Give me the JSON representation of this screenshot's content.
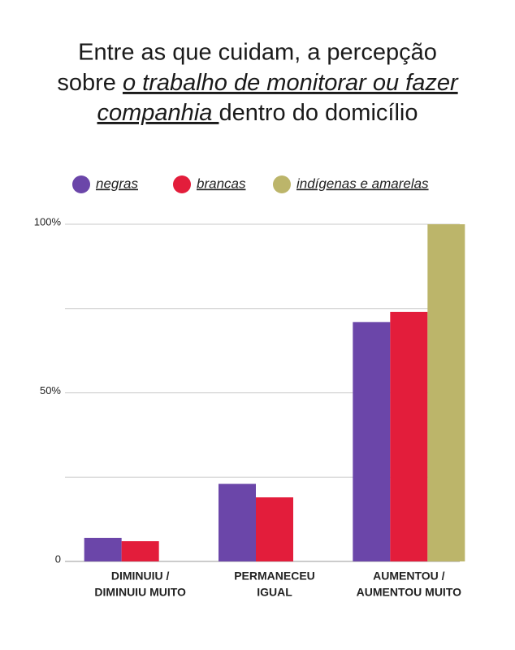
{
  "chart_data": {
    "type": "bar",
    "title": [
      "Entre as que cuidam, a percepção",
      "sobre ",
      "o trabalho de monitorar ou fazer",
      "companhia ",
      "dentro do domicílio"
    ],
    "categories": [
      [
        "DIMINUIU /",
        "DIMINUIU MUITO"
      ],
      [
        "PERMANECEU",
        "IGUAL"
      ],
      [
        "AUMENTOU /",
        "AUMENTOU MUITO"
      ]
    ],
    "series": [
      {
        "name": "negras",
        "color": "#6b46a9",
        "values": [
          7,
          23,
          71
        ]
      },
      {
        "name": "brancas",
        "color": "#e31d3b",
        "values": [
          6,
          19,
          74
        ]
      },
      {
        "name": "indígenas e amarelas",
        "color": "#bcb56a",
        "values": [
          0,
          0,
          100
        ]
      }
    ],
    "ylim": [
      0,
      100
    ],
    "yticks": [
      0,
      {
        "value": 50,
        "label": "50%"
      },
      {
        "value": 100,
        "label": "100%"
      }
    ],
    "grid_lines": [
      0,
      25,
      50,
      75,
      100
    ]
  }
}
